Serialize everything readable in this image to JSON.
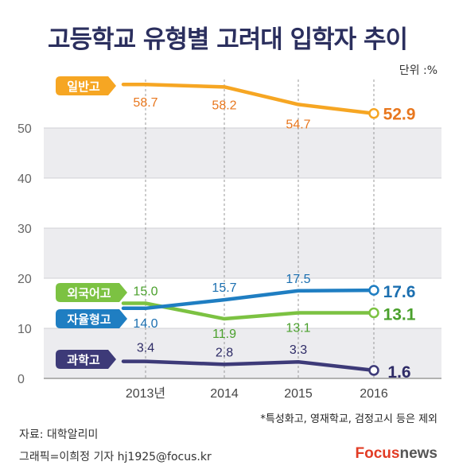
{
  "header": {
    "title": "고등학교 유형별 고려대 입학자 추이",
    "unit": "단위 :%"
  },
  "footer": {
    "source": "자료: 대학알리미",
    "credit": "그래픽=이희정 기자 hj1925@focus.kr",
    "note": "*특성화고, 영재학교, 검정고시 등은 제외",
    "brand_focus": "Focus",
    "brand_news": "news"
  },
  "chart_data": {
    "type": "line",
    "x": [
      "2013년",
      "2014",
      "2015",
      "2016"
    ],
    "ylim": [
      0,
      60
    ],
    "yticks": [
      "0",
      "10",
      "20",
      "30",
      "40",
      "50"
    ],
    "grid": true,
    "series": [
      {
        "name": "일반고",
        "values": [
          58.7,
          58.2,
          54.7,
          52.9
        ],
        "labels": [
          "58.7",
          "58.2",
          "54.7",
          "52.9"
        ],
        "color": "#f6a623",
        "label_color": "#e8771e"
      },
      {
        "name": "외국어고",
        "values": [
          15.0,
          11.9,
          13.1,
          13.1
        ],
        "labels": [
          "15.0",
          "11.9",
          "13.1",
          "13.1"
        ],
        "color": "#7cc242",
        "label_color": "#4aa02c"
      },
      {
        "name": "자율형고",
        "values": [
          14.0,
          15.7,
          17.5,
          17.6
        ],
        "labels": [
          "14.0",
          "15.7",
          "17.5",
          "17.6"
        ],
        "color": "#1f7ec2",
        "label_color": "#1b6fb0"
      },
      {
        "name": "과학고",
        "values": [
          3.4,
          2.8,
          3.3,
          1.6
        ],
        "labels": [
          "3.4",
          "2.8",
          "3.3",
          "1.6"
        ],
        "color": "#3d3a78",
        "label_color": "#2e2b66"
      }
    ]
  }
}
